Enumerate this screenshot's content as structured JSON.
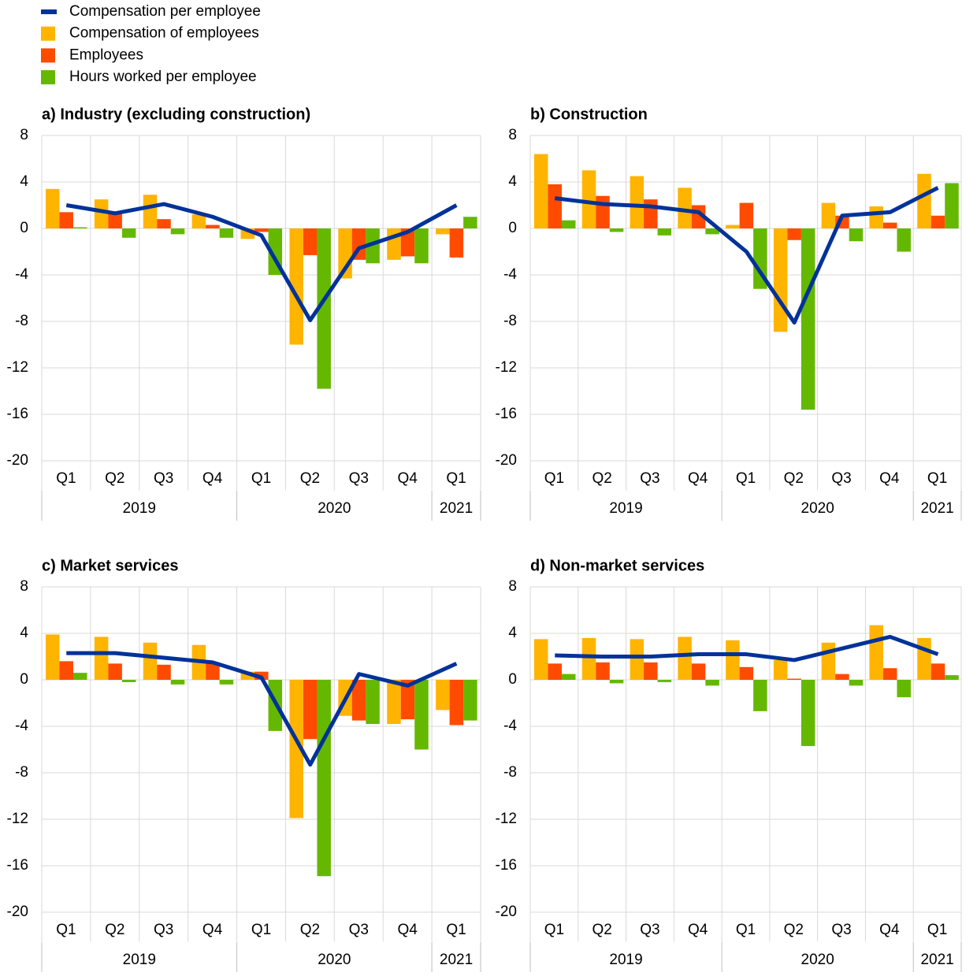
{
  "chart_data": [
    {
      "type": "bar",
      "title": "a) Industry (excluding construction)",
      "categories": [
        "Q1",
        "Q2",
        "Q3",
        "Q4",
        "Q1",
        "Q2",
        "Q3",
        "Q4",
        "Q1"
      ],
      "years": [
        "2019",
        null,
        null,
        null,
        "2020",
        null,
        null,
        null,
        "2021"
      ],
      "ylim": [
        -20,
        8
      ],
      "yticks": [
        8,
        4,
        0,
        -4,
        -8,
        -12,
        -16,
        -20
      ],
      "grid": true,
      "series": [
        {
          "name": "Compensation per employee",
          "color": "#003299",
          "type": "line",
          "values": [
            2.0,
            1.3,
            2.1,
            1.0,
            -0.6,
            -7.9,
            -1.7,
            -0.3,
            2.0
          ]
        },
        {
          "name": "Compensation of employees",
          "color": "#ffb400",
          "type": "bar",
          "values": [
            3.4,
            2.5,
            2.9,
            1.2,
            -0.9,
            -10.0,
            -4.3,
            -2.7,
            -0.5
          ]
        },
        {
          "name": "Employees",
          "color": "#ff4b00",
          "type": "bar",
          "values": [
            1.4,
            1.3,
            0.8,
            0.3,
            -0.3,
            -2.3,
            -2.7,
            -2.4,
            -2.5
          ]
        },
        {
          "name": "Hours worked per employee",
          "color": "#65b800",
          "type": "bar",
          "values": [
            0.1,
            -0.8,
            -0.5,
            -0.8,
            -4.0,
            -13.8,
            -3.0,
            -3.0,
            1.0
          ]
        }
      ]
    },
    {
      "type": "bar",
      "title": "b) Construction",
      "categories": [
        "Q1",
        "Q2",
        "Q3",
        "Q4",
        "Q1",
        "Q2",
        "Q3",
        "Q4",
        "Q1"
      ],
      "years": [
        "2019",
        null,
        null,
        null,
        "2020",
        null,
        null,
        null,
        "2021"
      ],
      "ylim": [
        -20,
        8
      ],
      "yticks": [
        8,
        4,
        0,
        -4,
        -8,
        -12,
        -16,
        -20
      ],
      "grid": true,
      "series": [
        {
          "name": "Compensation per employee",
          "color": "#003299",
          "type": "line",
          "values": [
            2.6,
            2.1,
            1.9,
            1.4,
            -2.0,
            -8.1,
            1.1,
            1.4,
            3.5
          ]
        },
        {
          "name": "Compensation of employees",
          "color": "#ffb400",
          "type": "bar",
          "values": [
            6.4,
            5.0,
            4.5,
            3.5,
            0.3,
            -8.9,
            2.2,
            1.9,
            4.7
          ]
        },
        {
          "name": "Employees",
          "color": "#ff4b00",
          "type": "bar",
          "values": [
            3.8,
            2.8,
            2.5,
            2.0,
            2.2,
            -1.0,
            1.1,
            0.5,
            1.1
          ]
        },
        {
          "name": "Hours worked per employee",
          "color": "#65b800",
          "type": "bar",
          "values": [
            0.7,
            -0.3,
            -0.6,
            -0.5,
            -5.2,
            -15.6,
            -1.1,
            -2.0,
            3.9
          ]
        }
      ]
    },
    {
      "type": "bar",
      "title": "c) Market services",
      "categories": [
        "Q1",
        "Q2",
        "Q3",
        "Q4",
        "Q1",
        "Q2",
        "Q3",
        "Q4",
        "Q1"
      ],
      "years": [
        "2019",
        null,
        null,
        null,
        "2020",
        null,
        null,
        null,
        "2021"
      ],
      "ylim": [
        -20,
        8
      ],
      "yticks": [
        8,
        4,
        0,
        -4,
        -8,
        -12,
        -16,
        -20
      ],
      "grid": true,
      "series": [
        {
          "name": "Compensation per employee",
          "color": "#003299",
          "type": "line",
          "values": [
            2.3,
            2.3,
            1.9,
            1.5,
            0.2,
            -7.3,
            0.5,
            -0.5,
            1.4
          ]
        },
        {
          "name": "Compensation of employees",
          "color": "#ffb400",
          "type": "bar",
          "values": [
            3.9,
            3.7,
            3.2,
            3.0,
            0.7,
            -11.9,
            -3.1,
            -3.8,
            -2.6
          ]
        },
        {
          "name": "Employees",
          "color": "#ff4b00",
          "type": "bar",
          "values": [
            1.6,
            1.4,
            1.3,
            1.5,
            0.7,
            -5.1,
            -3.5,
            -3.4,
            -3.9
          ]
        },
        {
          "name": "Hours worked per employee",
          "color": "#65b800",
          "type": "bar",
          "values": [
            0.6,
            -0.2,
            -0.4,
            -0.4,
            -4.4,
            -16.9,
            -3.8,
            -6.0,
            -3.5
          ]
        }
      ]
    },
    {
      "type": "bar",
      "title": "d) Non-market services",
      "categories": [
        "Q1",
        "Q2",
        "Q3",
        "Q4",
        "Q1",
        "Q2",
        "Q3",
        "Q4",
        "Q1"
      ],
      "years": [
        "2019",
        null,
        null,
        null,
        "2020",
        null,
        null,
        null,
        "2021"
      ],
      "ylim": [
        -20,
        8
      ],
      "yticks": [
        8,
        4,
        0,
        -4,
        -8,
        -12,
        -16,
        -20
      ],
      "grid": true,
      "series": [
        {
          "name": "Compensation per employee",
          "color": "#003299",
          "type": "line",
          "values": [
            2.1,
            2.0,
            2.0,
            2.2,
            2.2,
            1.7,
            2.7,
            3.7,
            2.2
          ]
        },
        {
          "name": "Compensation of employees",
          "color": "#ffb400",
          "type": "bar",
          "values": [
            3.5,
            3.6,
            3.5,
            3.7,
            3.4,
            1.7,
            3.2,
            4.7,
            3.6
          ]
        },
        {
          "name": "Employees",
          "color": "#ff4b00",
          "type": "bar",
          "values": [
            1.4,
            1.5,
            1.5,
            1.4,
            1.1,
            0.1,
            0.5,
            1.0,
            1.4
          ]
        },
        {
          "name": "Hours worked per employee",
          "color": "#65b800",
          "type": "bar",
          "values": [
            0.5,
            -0.3,
            -0.2,
            -0.5,
            -2.7,
            -5.7,
            -0.5,
            -1.5,
            0.4
          ]
        }
      ]
    }
  ]
}
